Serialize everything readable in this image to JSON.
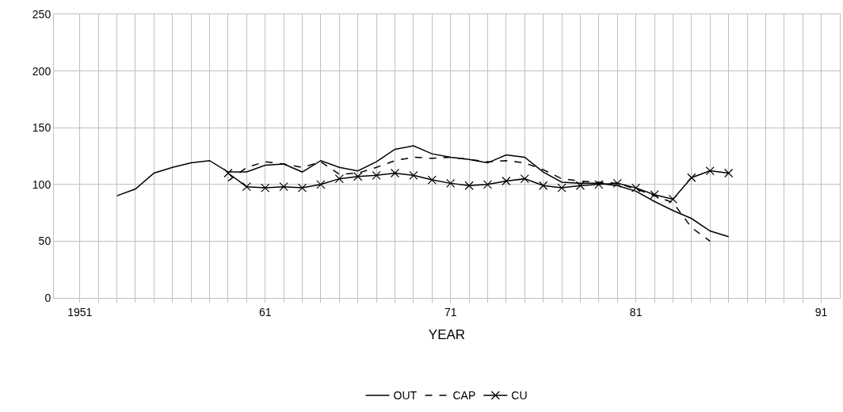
{
  "chart_data": {
    "type": "line",
    "xlabel": "YEAR",
    "x": [
      1953,
      1954,
      1955,
      1956,
      1957,
      1958,
      1959,
      1960,
      1961,
      1962,
      1963,
      1964,
      1965,
      1966,
      1967,
      1968,
      1969,
      1970,
      1971,
      1972,
      1973,
      1974,
      1975,
      1976,
      1977,
      1978,
      1979,
      1980,
      1981,
      1982,
      1983,
      1984,
      1985,
      1986
    ],
    "series": [
      {
        "name": "OUT",
        "color": "#000000",
        "line_style": "solid",
        "marker": "none",
        "values": [
          90,
          96,
          110,
          115,
          119,
          121,
          111,
          111,
          117,
          118,
          111,
          121,
          115,
          112,
          120,
          131,
          134,
          127,
          124,
          122,
          119,
          126,
          124,
          111,
          102,
          101,
          101,
          99,
          94,
          85,
          77,
          70,
          59,
          54
        ]
      },
      {
        "name": "CAP",
        "color": "#000000",
        "line_style": "dashed",
        "marker": "none",
        "values": [
          null,
          null,
          null,
          null,
          null,
          null,
          103,
          115,
          120,
          118,
          115,
          120,
          109,
          110,
          115,
          121,
          124,
          123,
          124,
          122,
          120,
          121,
          119,
          113,
          105,
          103,
          102,
          101,
          96,
          90,
          84,
          62,
          50,
          null
        ]
      },
      {
        "name": "CU",
        "color": "#000000",
        "line_style": "solid",
        "marker": "cross",
        "values": [
          null,
          null,
          null,
          null,
          null,
          null,
          110,
          98,
          97,
          98,
          97,
          100,
          105,
          107,
          108,
          110,
          108,
          104,
          101,
          99,
          100,
          103,
          105,
          99,
          97,
          99,
          100,
          101,
          97,
          91,
          87,
          106,
          112,
          110
        ]
      }
    ],
    "xlim": [
      1949.6,
      1992
    ],
    "xticks": [
      {
        "value": 1951,
        "label": "1951"
      },
      {
        "value": 1952,
        "label": null
      },
      {
        "value": 1953,
        "label": null
      },
      {
        "value": 1954,
        "label": null
      },
      {
        "value": 1955,
        "label": null
      },
      {
        "value": 1956,
        "label": null
      },
      {
        "value": 1957,
        "label": null
      },
      {
        "value": 1958,
        "label": null
      },
      {
        "value": 1959,
        "label": null
      },
      {
        "value": 1960,
        "label": null
      },
      {
        "value": 1961,
        "label": "61"
      },
      {
        "value": 1962,
        "label": null
      },
      {
        "value": 1963,
        "label": null
      },
      {
        "value": 1964,
        "label": null
      },
      {
        "value": 1965,
        "label": null
      },
      {
        "value": 1966,
        "label": null
      },
      {
        "value": 1967,
        "label": null
      },
      {
        "value": 1968,
        "label": null
      },
      {
        "value": 1969,
        "label": null
      },
      {
        "value": 1970,
        "label": null
      },
      {
        "value": 1971,
        "label": "71"
      },
      {
        "value": 1972,
        "label": null
      },
      {
        "value": 1973,
        "label": null
      },
      {
        "value": 1974,
        "label": null
      },
      {
        "value": 1975,
        "label": null
      },
      {
        "value": 1976,
        "label": null
      },
      {
        "value": 1977,
        "label": null
      },
      {
        "value": 1978,
        "label": null
      },
      {
        "value": 1979,
        "label": null
      },
      {
        "value": 1980,
        "label": null
      },
      {
        "value": 1981,
        "label": "81"
      },
      {
        "value": 1982,
        "label": null
      },
      {
        "value": 1983,
        "label": null
      },
      {
        "value": 1984,
        "label": null
      },
      {
        "value": 1985,
        "label": null
      },
      {
        "value": 1986,
        "label": null
      },
      {
        "value": 1987,
        "label": null
      },
      {
        "value": 1988,
        "label": null
      },
      {
        "value": 1989,
        "label": null
      },
      {
        "value": 1990,
        "label": null
      },
      {
        "value": 1991,
        "label": "91"
      }
    ],
    "ylim": [
      0,
      250
    ],
    "yticks": [
      0,
      50,
      100,
      150,
      200,
      250
    ],
    "grid": true,
    "legend": "bottom"
  }
}
